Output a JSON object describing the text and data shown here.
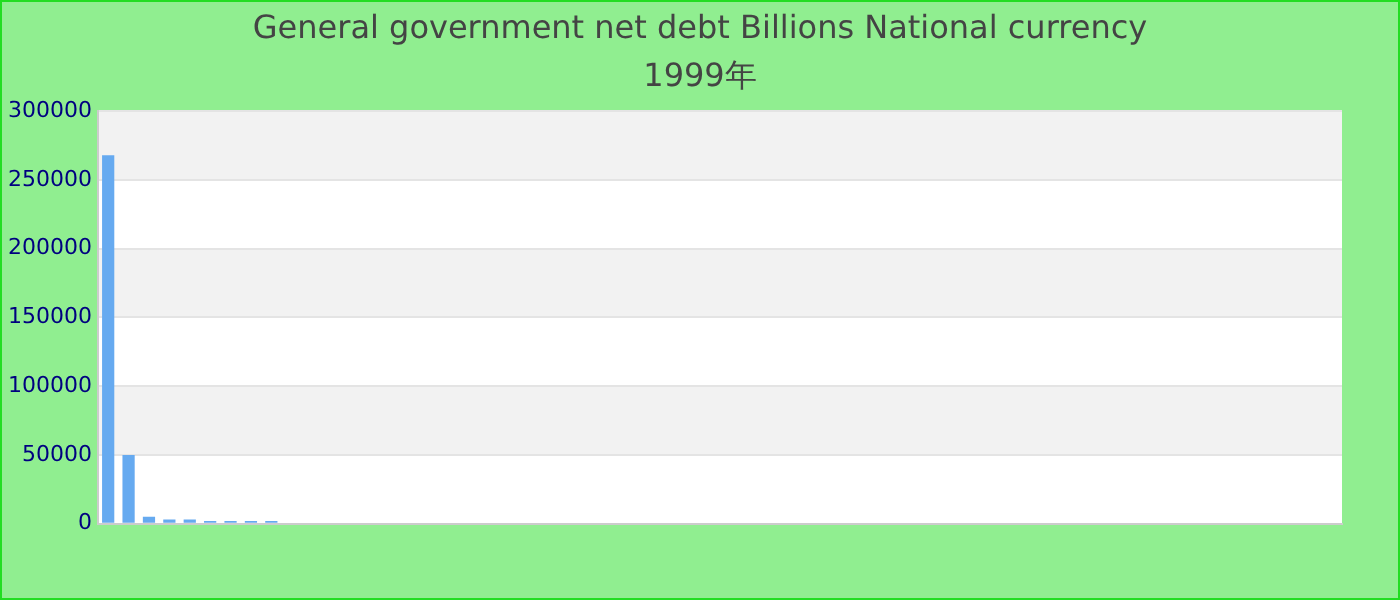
{
  "chart_data": {
    "type": "bar",
    "title": "General government net debt Billions National currency",
    "subtitle": "1999年",
    "categories": [
      null,
      null,
      null,
      null,
      null,
      null,
      null,
      null,
      null,
      null,
      null,
      null,
      null,
      null,
      null,
      null,
      null,
      null,
      null,
      null,
      null,
      null,
      null,
      null,
      null,
      null,
      null,
      null,
      null,
      null,
      null,
      null,
      null,
      null,
      null,
      null,
      null,
      null,
      null,
      null,
      null,
      null,
      null,
      null,
      null,
      null,
      null,
      null,
      null,
      null,
      null,
      null,
      null,
      null,
      null,
      null,
      null,
      null,
      null,
      null,
      null
    ],
    "values": [
      268000,
      50000,
      5000,
      3000,
      3000,
      2000,
      2000,
      2000,
      2000,
      0,
      0,
      0,
      0,
      0,
      0,
      0,
      0,
      0,
      0,
      0,
      0,
      0,
      0,
      0,
      0,
      0,
      0,
      0,
      0,
      0,
      0,
      0,
      0,
      0,
      0,
      0,
      0,
      0,
      0,
      0,
      0,
      0,
      0,
      0,
      0,
      0,
      0,
      0,
      0,
      0,
      0,
      0,
      0,
      0,
      0,
      0,
      0,
      0,
      0,
      0,
      0
    ],
    "color": "#66aaf0",
    "ylim": [
      0,
      300000
    ],
    "yticks": [
      0,
      50000,
      100000,
      150000,
      200000,
      250000,
      300000
    ],
    "grid": "y",
    "legend": false
  }
}
